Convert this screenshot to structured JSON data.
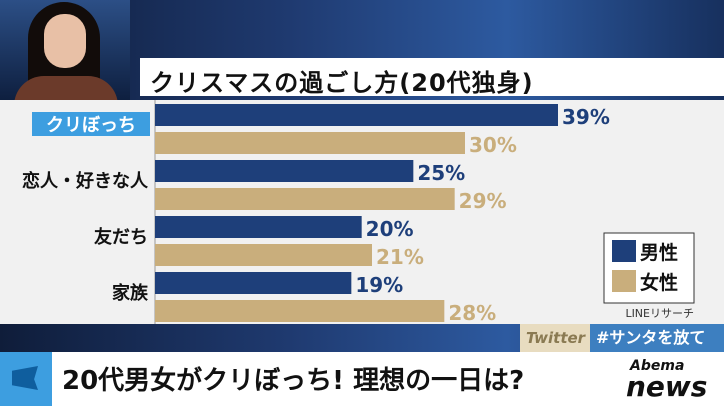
{
  "chart_data": {
    "type": "bar",
    "title": "クリスマスの過ごし方(20代独身)",
    "categories": [
      "クリぼっち",
      "恋人・好きな人",
      "友だち",
      "家族"
    ],
    "series": [
      {
        "name": "男性",
        "values": [
          39,
          25,
          20,
          19
        ],
        "labels": [
          "39%",
          "25%",
          "20%",
          "19%"
        ],
        "color": "#1e3f7a"
      },
      {
        "name": "女性",
        "values": [
          30,
          29,
          21,
          28
        ],
        "labels": [
          "30%",
          "29%",
          "21%",
          "28%"
        ],
        "color": "#c9ae7c"
      }
    ],
    "highlight_category": "クリぼっち",
    "highlight_color": "#3d9ee0",
    "source": "LINEリサーチ",
    "legend_position": "bottom-right",
    "xlim": [
      0,
      50
    ],
    "grid": false
  },
  "social": {
    "platform": "Twitter",
    "hashtag": "#サンタを放て"
  },
  "ticker": {
    "headline": "20代男女がクリぼっち! 理想の一日は?"
  },
  "logo": {
    "line1": "Abema",
    "line2": "news"
  }
}
